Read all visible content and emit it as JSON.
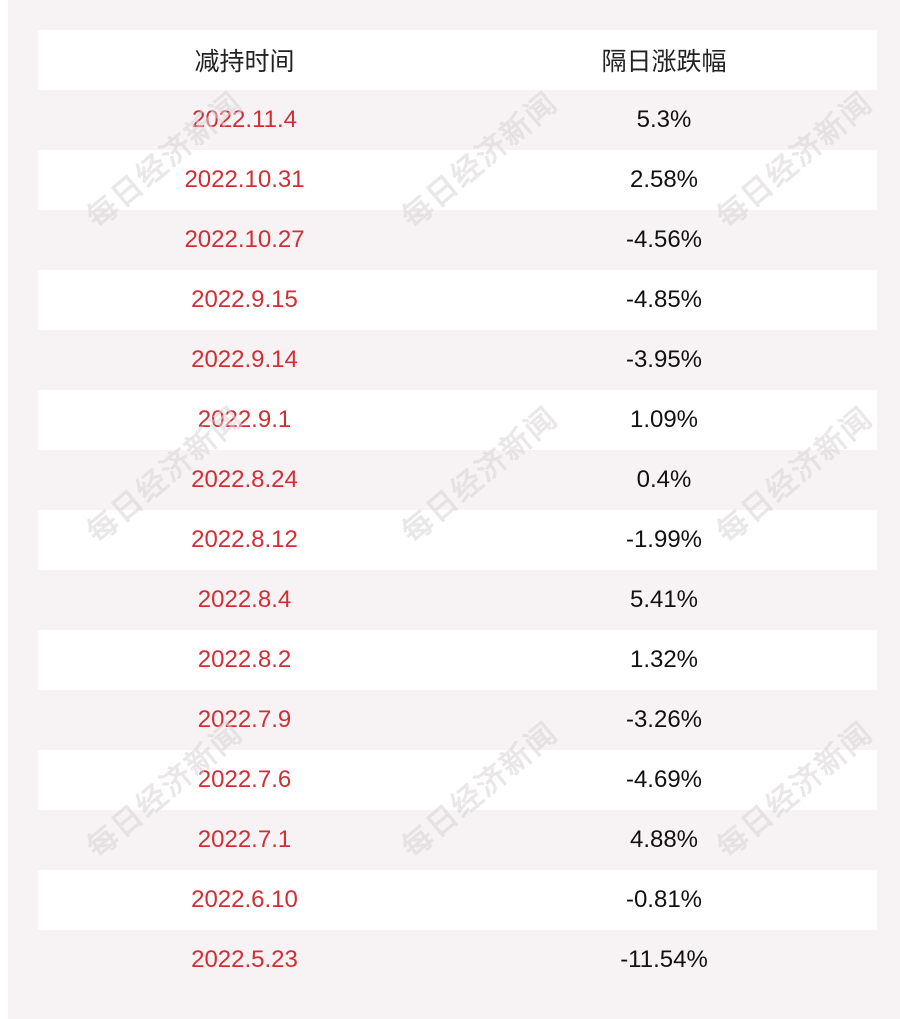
{
  "table": {
    "header": {
      "left": "减持时间",
      "right": "隔日涨跌幅"
    },
    "rows": [
      {
        "date": "2022.11.4",
        "change": "5.3%"
      },
      {
        "date": "2022.10.31",
        "change": "2.58%"
      },
      {
        "date": "2022.10.27",
        "change": "-4.56%"
      },
      {
        "date": "2022.9.15",
        "change": "-4.85%"
      },
      {
        "date": "2022.9.14",
        "change": "-3.95%"
      },
      {
        "date": "2022.9.1",
        "change": "1.09%"
      },
      {
        "date": "2022.8.24",
        "change": "0.4%"
      },
      {
        "date": "2022.8.12",
        "change": "-1.99%"
      },
      {
        "date": "2022.8.4",
        "change": "5.41%"
      },
      {
        "date": "2022.8.2",
        "change": "1.32%"
      },
      {
        "date": "2022.7.9",
        "change": "-3.26%"
      },
      {
        "date": "2022.7.6",
        "change": "-4.69%"
      },
      {
        "date": "2022.7.1",
        "change": "4.88%"
      },
      {
        "date": "2022.6.10",
        "change": "-0.81%"
      },
      {
        "date": "2022.5.23",
        "change": "-11.54%"
      }
    ]
  },
  "watermark": {
    "text": "每日经济新闻"
  },
  "colors": {
    "date_text": "#d22e35",
    "panel_background": "#f7f3f4",
    "row_highlight": "#ffffff"
  }
}
